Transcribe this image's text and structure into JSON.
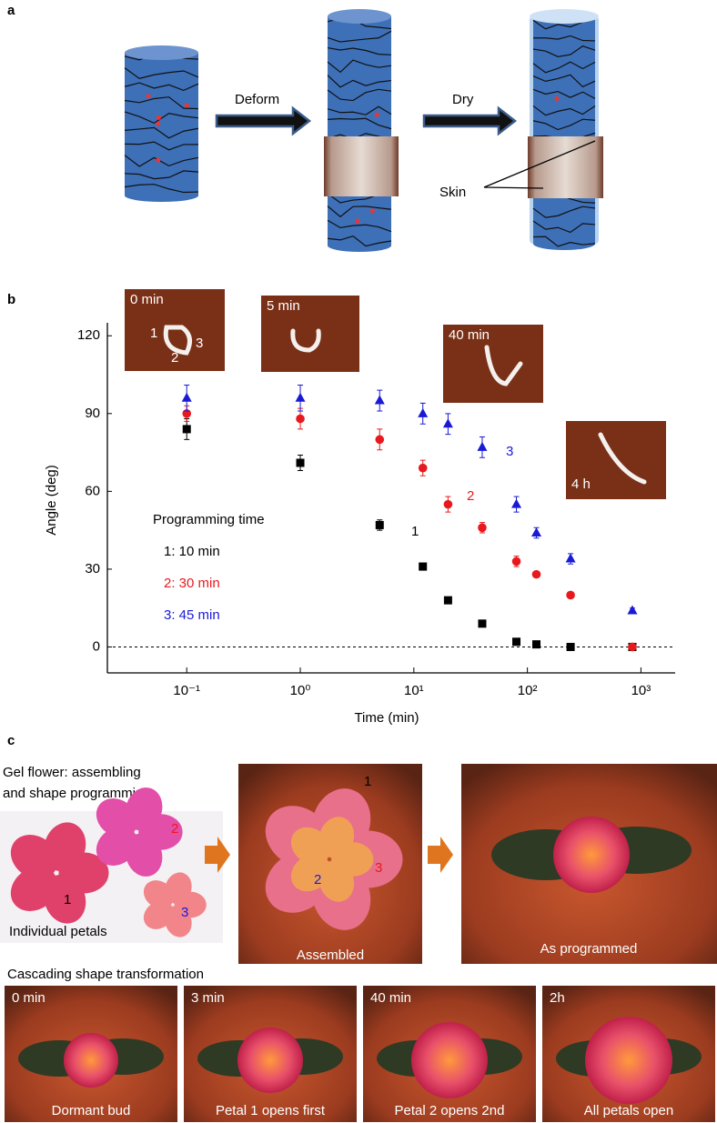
{
  "panel_labels": [
    "a",
    "b",
    "c"
  ],
  "panel_a": {
    "arrows": [
      "Deform",
      "Dry"
    ],
    "skin": "Skin"
  },
  "chart_data": {
    "type": "scatter",
    "xlabel": "Time (min)",
    "ylabel": "Angle (deg)",
    "xscale": "log",
    "xlim": [
      0.02,
      2000
    ],
    "ylim": [
      -10,
      125
    ],
    "xticks": [
      {
        "value": 0.1,
        "label": "10⁻¹"
      },
      {
        "value": 1,
        "label": "10⁰"
      },
      {
        "value": 10,
        "label": "10¹"
      },
      {
        "value": 100,
        "label": "10²"
      },
      {
        "value": 1000,
        "label": "10³"
      }
    ],
    "yticks": [
      0,
      30,
      60,
      90,
      120
    ],
    "hline": 0,
    "legend_title": "Programming time",
    "x": [
      0.1,
      1,
      5,
      12,
      20,
      40,
      80,
      120,
      240,
      840
    ],
    "series": [
      {
        "name": "1: 10 min",
        "color": "#000000",
        "marker": "square",
        "label": "1",
        "values": [
          84,
          71,
          47,
          31,
          18,
          9,
          2,
          1,
          0,
          0
        ],
        "errors": [
          4,
          3,
          2,
          1,
          1,
          1,
          1,
          1,
          1,
          1
        ]
      },
      {
        "name": "2: 30 min",
        "color": "#e8191e",
        "marker": "circle",
        "label": "2",
        "values": [
          90,
          88,
          80,
          69,
          55,
          46,
          33,
          28,
          20,
          0
        ],
        "errors": [
          3,
          4,
          4,
          3,
          3,
          2,
          2,
          1,
          1,
          1
        ]
      },
      {
        "name": "3: 45 min",
        "color": "#1a1ad6",
        "marker": "triangle",
        "label": "3",
        "values": [
          96,
          96,
          95,
          90,
          86,
          77,
          55,
          44,
          34,
          14
        ],
        "errors": [
          5,
          5,
          4,
          4,
          4,
          4,
          3,
          2,
          2,
          1
        ]
      }
    ],
    "insets": [
      {
        "label": "0 min",
        "marks": [
          "1",
          "2",
          "3"
        ]
      },
      {
        "label": "5 min"
      },
      {
        "label": "40 min"
      },
      {
        "label": "4 h"
      }
    ]
  },
  "panel_c": {
    "heading": [
      "Gel flower: assembling",
      "and shape programming"
    ],
    "petals": {
      "marks": [
        "1",
        "2",
        "3"
      ],
      "caption": "Individual petals"
    },
    "assembled": {
      "marks": [
        "1",
        "2",
        "3"
      ],
      "caption": "Assembled"
    },
    "programmed": {
      "caption": "As programmed"
    },
    "sequence_title": "Cascading shape transformation",
    "frames": [
      {
        "time": "0 min",
        "caption": "Dormant bud"
      },
      {
        "time": "3 min",
        "caption": "Petal 1 opens first"
      },
      {
        "time": "40 min",
        "caption": "Petal 2 opens 2nd"
      },
      {
        "time": "2h",
        "caption": "All petals open"
      }
    ]
  }
}
